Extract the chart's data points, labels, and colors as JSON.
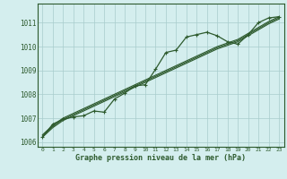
{
  "xlabel": "Graphe pression niveau de la mer (hPa)",
  "bg_color": "#d4eeee",
  "grid_color": "#a8cccc",
  "line_color": "#2d5a2d",
  "spine_color": "#2d5a2d",
  "xlim": [
    -0.5,
    23.5
  ],
  "ylim": [
    1005.8,
    1011.8
  ],
  "yticks": [
    1006,
    1007,
    1008,
    1009,
    1010,
    1011
  ],
  "xticks": [
    0,
    1,
    2,
    3,
    4,
    5,
    6,
    7,
    8,
    9,
    10,
    11,
    12,
    13,
    14,
    15,
    16,
    17,
    18,
    19,
    20,
    21,
    22,
    23
  ],
  "series_main": [
    1006.2,
    1006.75,
    1006.95,
    1007.05,
    1007.1,
    1007.3,
    1007.25,
    1007.8,
    1008.05,
    1008.35,
    1008.4,
    1009.05,
    1009.75,
    1009.85,
    1010.4,
    1010.5,
    1010.6,
    1010.45,
    1010.2,
    1010.1,
    1010.5,
    1011.0,
    1011.2,
    1011.25
  ],
  "series_linear1": [
    1006.3,
    1006.7,
    1007.0,
    1007.2,
    1007.4,
    1007.6,
    1007.8,
    1008.0,
    1008.2,
    1008.4,
    1008.6,
    1008.8,
    1009.0,
    1009.2,
    1009.4,
    1009.6,
    1009.8,
    1010.0,
    1010.15,
    1010.3,
    1010.55,
    1010.8,
    1011.05,
    1011.25
  ],
  "series_linear2": [
    1006.25,
    1006.65,
    1006.95,
    1007.15,
    1007.35,
    1007.55,
    1007.75,
    1007.95,
    1008.15,
    1008.35,
    1008.55,
    1008.75,
    1008.95,
    1009.15,
    1009.35,
    1009.55,
    1009.75,
    1009.95,
    1010.1,
    1010.25,
    1010.5,
    1010.75,
    1011.0,
    1011.2
  ],
  "series_linear3": [
    1006.2,
    1006.6,
    1006.9,
    1007.1,
    1007.3,
    1007.5,
    1007.7,
    1007.9,
    1008.1,
    1008.3,
    1008.5,
    1008.7,
    1008.9,
    1009.1,
    1009.3,
    1009.5,
    1009.7,
    1009.9,
    1010.05,
    1010.2,
    1010.45,
    1010.7,
    1010.95,
    1011.15
  ]
}
